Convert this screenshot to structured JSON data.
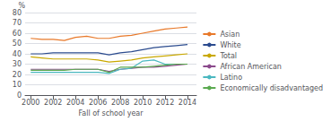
{
  "chart_data": {
    "type": "line",
    "xlabel": "Fall of school year",
    "ylabel": "%",
    "x": [
      2000,
      2001,
      2002,
      2003,
      2004,
      2005,
      2006,
      2007,
      2008,
      2009,
      2010,
      2011,
      2012,
      2013,
      2014
    ],
    "series": [
      {
        "name": "Asian",
        "color": "#E8792A",
        "values": [
          55,
          54,
          54,
          53,
          56,
          57,
          55,
          55,
          57,
          58,
          60,
          62,
          64,
          65,
          66
        ]
      },
      {
        "name": "White",
        "color": "#2B4B8E",
        "values": [
          40,
          40,
          41,
          41,
          41,
          41,
          41,
          39,
          41,
          42,
          44,
          46,
          47,
          48,
          49
        ]
      },
      {
        "name": "Total",
        "color": "#C9A800",
        "values": [
          37,
          36,
          35,
          35,
          35,
          35,
          34,
          32,
          33,
          34,
          36,
          37,
          38,
          39,
          40
        ]
      },
      {
        "name": "African American",
        "color": "#8B4A8C",
        "values": [
          25,
          25,
          25,
          25,
          25,
          25,
          25,
          23,
          25,
          26,
          27,
          27,
          28,
          29,
          30
        ]
      },
      {
        "name": "Latino",
        "color": "#4BB8C0",
        "values": [
          22,
          22,
          22,
          22,
          22,
          22,
          22,
          21,
          25,
          26,
          33,
          34,
          30,
          30,
          30
        ]
      },
      {
        "name": "Economically disadvantaged",
        "color": "#5BAA50",
        "values": [
          24,
          24,
          24,
          24,
          25,
          25,
          25,
          22,
          27,
          27,
          27,
          28,
          29,
          30,
          30
        ]
      }
    ],
    "xlim": [
      1999.5,
      2014.8
    ],
    "xticks": [
      2000,
      2002,
      2004,
      2006,
      2008,
      2010,
      2012,
      2014
    ],
    "ylim": [
      0,
      80
    ],
    "yticks": [
      0,
      10,
      20,
      30,
      40,
      50,
      60,
      70,
      80
    ],
    "grid": true,
    "legend": "right"
  }
}
